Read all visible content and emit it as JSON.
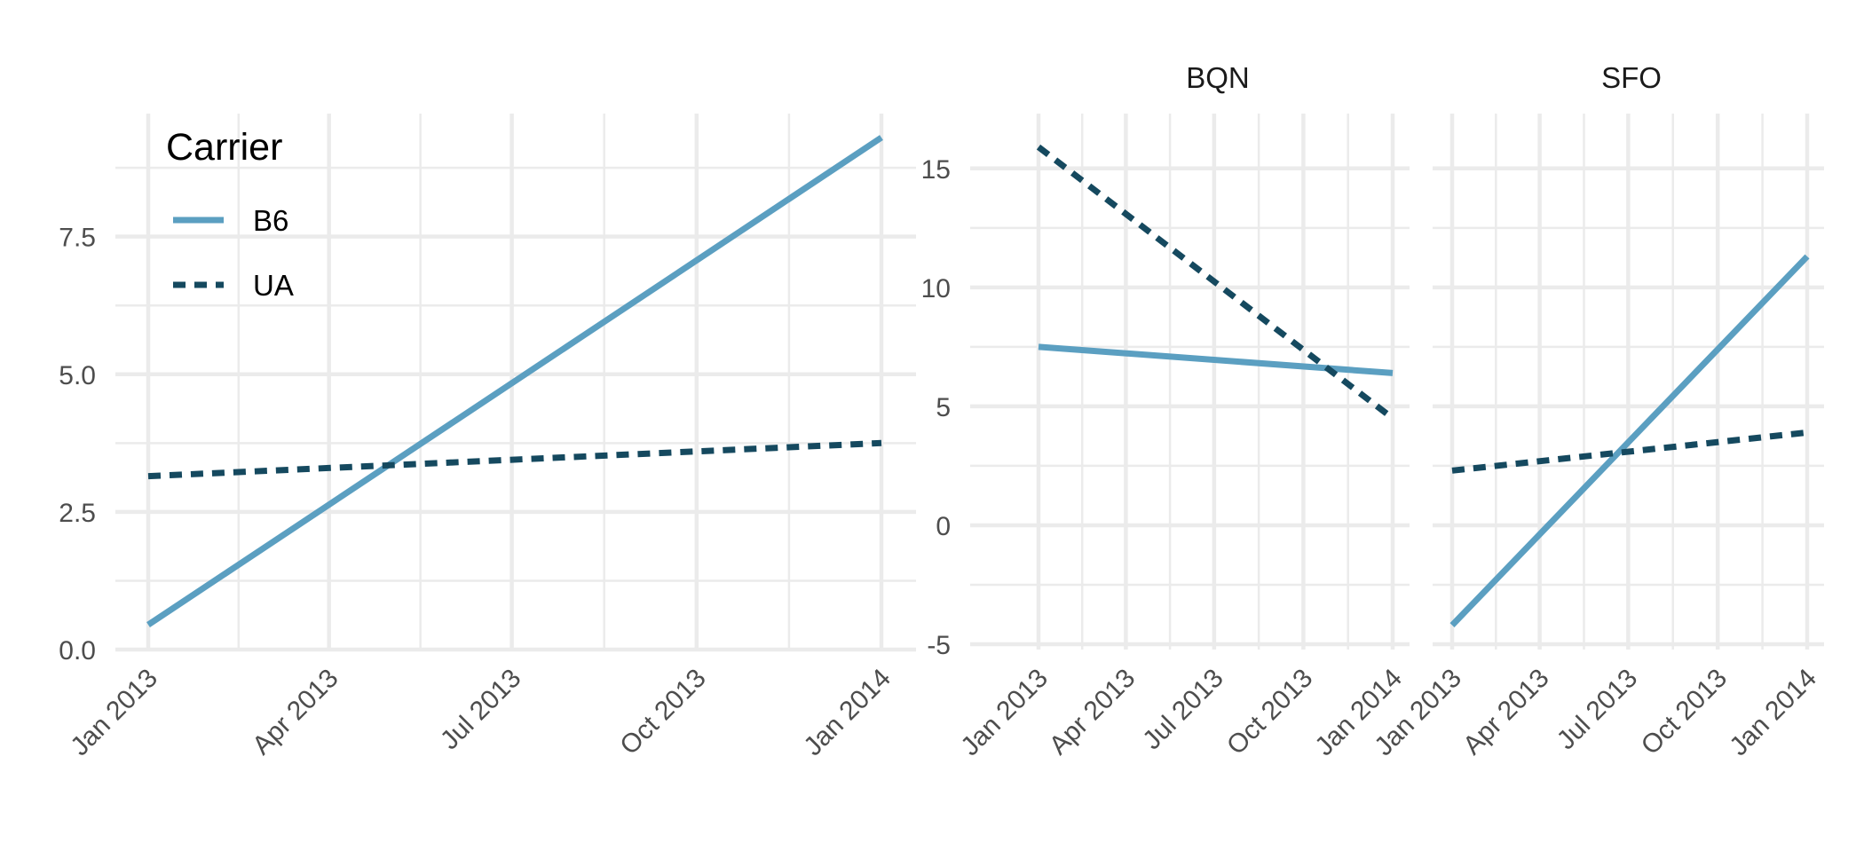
{
  "colors": {
    "background": "#ffffff",
    "grid": "#ebebeb",
    "tick_text": "#4d4d4d",
    "B6": "#5b9fc1",
    "UA": "#15495f"
  },
  "chart_data": [
    {
      "type": "line",
      "title": "",
      "xlabel": "",
      "ylabel": "",
      "x_axis": "date",
      "xlim": [
        "2013-01-01",
        "2014-01-01"
      ],
      "ylim": [
        0,
        9.3
      ],
      "x_ticks": [
        "Jan 2013",
        "Apr 2013",
        "Jul 2013",
        "Oct 2013",
        "Jan 2014"
      ],
      "y_ticks": [
        "0.0",
        "2.5",
        "5.0",
        "7.5"
      ],
      "grid": true,
      "legend": {
        "title": "Carrier",
        "position": "top-left inside",
        "entries": [
          "B6",
          "UA"
        ]
      },
      "series": [
        {
          "name": "B6",
          "line_style": "solid",
          "x": [
            "2013-01-01",
            "2014-01-01"
          ],
          "y": [
            0.45,
            9.3
          ]
        },
        {
          "name": "UA",
          "line_style": "dashed",
          "x": [
            "2013-01-01",
            "2014-01-01"
          ],
          "y": [
            3.15,
            3.75
          ]
        }
      ]
    },
    {
      "type": "line",
      "title": "BQN",
      "xlabel": "",
      "ylabel": "",
      "x_axis": "date",
      "xlim": [
        "2013-01-01",
        "2014-01-01"
      ],
      "ylim": [
        -5,
        16
      ],
      "x_ticks": [
        "Jan 2013",
        "Apr 2013",
        "Jul 2013",
        "Oct 2013",
        "Jan 2014"
      ],
      "y_ticks": [
        "-5",
        "0",
        "5",
        "10",
        "15"
      ],
      "grid": true,
      "series": [
        {
          "name": "B6",
          "line_style": "solid",
          "x": [
            "2013-01-01",
            "2014-01-01"
          ],
          "y": [
            7.5,
            6.4
          ]
        },
        {
          "name": "UA",
          "line_style": "dashed",
          "x": [
            "2013-01-01",
            "2014-01-01"
          ],
          "y": [
            15.9,
            4.5
          ]
        }
      ]
    },
    {
      "type": "line",
      "title": "SFO",
      "xlabel": "",
      "ylabel": "",
      "x_axis": "date",
      "xlim": [
        "2013-01-01",
        "2014-01-01"
      ],
      "ylim": [
        -5,
        16
      ],
      "x_ticks": [
        "Jan 2013",
        "Apr 2013",
        "Jul 2013",
        "Oct 2013",
        "Jan 2014"
      ],
      "y_ticks": [],
      "grid": true,
      "series": [
        {
          "name": "B6",
          "line_style": "solid",
          "x": [
            "2013-01-01",
            "2014-01-01"
          ],
          "y": [
            -4.2,
            11.3
          ]
        },
        {
          "name": "UA",
          "line_style": "dashed",
          "x": [
            "2013-01-01",
            "2014-01-01"
          ],
          "y": [
            2.3,
            3.9
          ]
        }
      ]
    }
  ]
}
